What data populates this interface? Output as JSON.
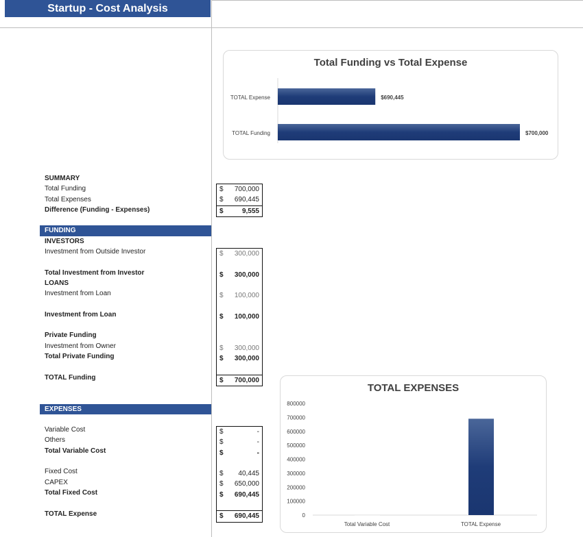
{
  "header": {
    "title": "Startup - Cost Analysis"
  },
  "summary": {
    "heading": "SUMMARY",
    "rows": [
      {
        "label": "Total Funding",
        "currency": "$",
        "value": "700,000"
      },
      {
        "label": "Total Expenses",
        "currency": "$",
        "value": "690,445"
      },
      {
        "label": "Difference (Funding - Expenses)",
        "currency": "$",
        "value": "9,555"
      }
    ]
  },
  "funding": {
    "band": "FUNDING",
    "investors_heading": "INVESTORS",
    "outside_investor": {
      "label": "Investment from Outside Investor",
      "currency": "$",
      "value": "300,000"
    },
    "total_investor": {
      "label": "Total Investment from Investor",
      "currency": "$",
      "value": "300,000"
    },
    "loans_heading": "LOANS",
    "loan": {
      "label": "Investment from Loan",
      "currency": "$",
      "value": "100,000"
    },
    "total_loan": {
      "label": "Investment from Loan",
      "currency": "$",
      "value": "100,000"
    },
    "private_heading": "Private Funding",
    "owner": {
      "label": "Investment from Owner",
      "currency": "$",
      "value": "300,000"
    },
    "total_private": {
      "label": "Total Private Funding",
      "currency": "$",
      "value": "300,000"
    },
    "total": {
      "label": "TOTAL Funding",
      "currency": "$",
      "value": "700,000"
    }
  },
  "expenses": {
    "band": "EXPENSES",
    "variable": {
      "label": "Variable Cost",
      "currency": "$",
      "value": "-"
    },
    "others": {
      "label": "Others",
      "currency": "$",
      "value": "-"
    },
    "total_variable": {
      "label": "Total Variable Cost",
      "currency": "$",
      "value": "-"
    },
    "fixed": {
      "label": "Fixed Cost",
      "currency": "$",
      "value": "40,445"
    },
    "capex": {
      "label": "CAPEX",
      "currency": "$",
      "value": "650,000"
    },
    "total_fixed": {
      "label": "Total Fixed Cost",
      "currency": "$",
      "value": "690,445"
    },
    "total": {
      "label": "TOTAL Expense",
      "currency": "$",
      "value": "690,445"
    }
  },
  "chart_data": [
    {
      "type": "bar",
      "orientation": "horizontal",
      "title": "Total Funding vs Total Expense",
      "categories": [
        "TOTAL Expense",
        "TOTAL Funding"
      ],
      "values": [
        690445,
        700000
      ],
      "data_labels": [
        "$690,445",
        "$700,000"
      ],
      "xlim": [
        684000,
        700000
      ],
      "grid": false,
      "color": "#1f3c78"
    },
    {
      "type": "bar",
      "title": "TOTAL EXPENSES",
      "categories": [
        "Total Variable Cost",
        "TOTAL Expense"
      ],
      "values": [
        0,
        690445
      ],
      "ylim": [
        0,
        800000
      ],
      "yticks": [
        "0",
        "100000",
        "200000",
        "300000",
        "400000",
        "500000",
        "600000",
        "700000",
        "800000"
      ],
      "grid": false,
      "color": "#1f3c78"
    }
  ]
}
